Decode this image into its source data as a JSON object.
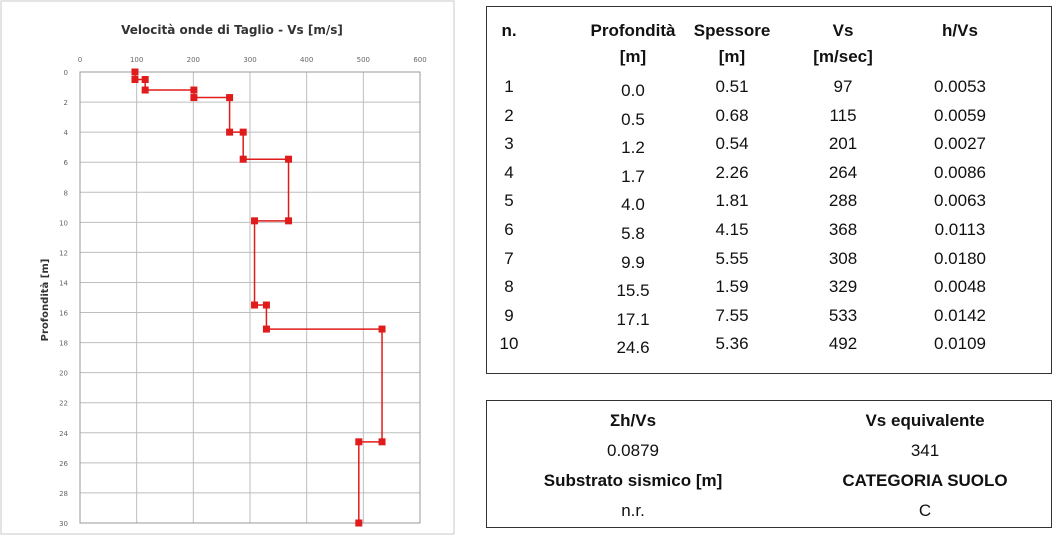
{
  "chart_data": {
    "type": "line",
    "title": "Velocità onde di Taglio - Vs [m/s]",
    "xlabel": "",
    "ylabel": "Profondità [m]",
    "xlim": [
      0,
      600
    ],
    "ylim": [
      0,
      30
    ],
    "y_inverted": true,
    "x_ticks": [
      "0",
      "100",
      "200",
      "300",
      "400",
      "500",
      "600"
    ],
    "y_ticks": [
      "0",
      "2",
      "4",
      "6",
      "8",
      "10",
      "12",
      "14",
      "16",
      "18",
      "20",
      "22",
      "24",
      "26",
      "28",
      "30"
    ],
    "grid": true,
    "color": "#e01b1b",
    "series": [
      {
        "points": [
          {
            "x": 97,
            "y": 0.0
          },
          {
            "x": 97,
            "y": 0.5
          },
          {
            "x": 115,
            "y": 0.5
          },
          {
            "x": 115,
            "y": 1.2
          },
          {
            "x": 201,
            "y": 1.2
          },
          {
            "x": 201,
            "y": 1.7
          },
          {
            "x": 264,
            "y": 1.7
          },
          {
            "x": 264,
            "y": 4.0
          },
          {
            "x": 288,
            "y": 4.0
          },
          {
            "x": 288,
            "y": 5.8
          },
          {
            "x": 368,
            "y": 5.8
          },
          {
            "x": 368,
            "y": 9.9
          },
          {
            "x": 308,
            "y": 9.9
          },
          {
            "x": 308,
            "y": 15.5
          },
          {
            "x": 329,
            "y": 15.5
          },
          {
            "x": 329,
            "y": 17.1
          },
          {
            "x": 533,
            "y": 17.1
          },
          {
            "x": 533,
            "y": 24.6
          },
          {
            "x": 492,
            "y": 24.6
          },
          {
            "x": 492,
            "y": 30.0
          }
        ]
      }
    ]
  },
  "table": {
    "headers": [
      {
        "top": "n.",
        "bottom": ""
      },
      {
        "top": "Profondità",
        "bottom": "[m]"
      },
      {
        "top": "Spessore",
        "bottom": "[m]"
      },
      {
        "top": "Vs",
        "bottom": "[m/sec]"
      },
      {
        "top": "h/Vs",
        "bottom": ""
      }
    ],
    "rows": [
      [
        "1",
        "0.0",
        "0.51",
        "97",
        "0.0053"
      ],
      [
        "2",
        "0.5",
        "0.68",
        "115",
        "0.0059"
      ],
      [
        "3",
        "1.2",
        "0.54",
        "201",
        "0.0027"
      ],
      [
        "4",
        "1.7",
        "2.26",
        "264",
        "0.0086"
      ],
      [
        "5",
        "4.0",
        "1.81",
        "288",
        "0.0063"
      ],
      [
        "6",
        "5.8",
        "4.15",
        "368",
        "0.0113"
      ],
      [
        "7",
        "9.9",
        "5.55",
        "308",
        "0.0180"
      ],
      [
        "8",
        "15.5",
        "1.59",
        "329",
        "0.0048"
      ],
      [
        "9",
        "17.1",
        "7.55",
        "533",
        "0.0142"
      ],
      [
        "10",
        "24.6",
        "5.36",
        "492",
        "0.0109"
      ]
    ]
  },
  "summary": {
    "sum_label": "Σh/Vs",
    "sum_value": "0.0879",
    "vs_eq_label": "Vs equivalente",
    "vs_eq_value": "341",
    "substrato_label": "Substrato sismico [m]",
    "substrato_value": "n.r.",
    "categoria_label": "CATEGORIA SUOLO",
    "categoria_value": "C"
  }
}
